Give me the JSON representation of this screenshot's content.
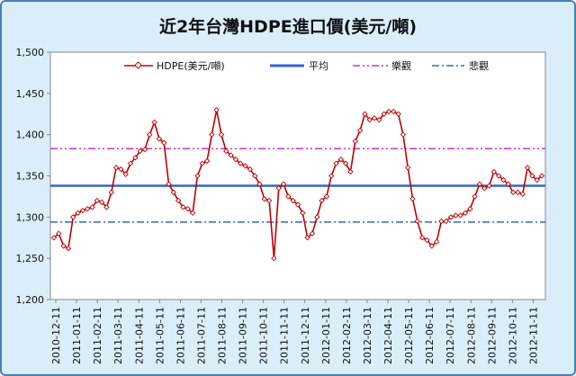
{
  "chart_data": {
    "type": "line",
    "title": "近2年台灣HDPE進口價(美元/噸)",
    "xlabel": "",
    "ylabel": "",
    "ylim": [
      1200,
      1500
    ],
    "yticks": [
      1200,
      1250,
      1300,
      1350,
      1400,
      1450,
      1500
    ],
    "ytick_labels": [
      "1,200",
      "1,250",
      "1,300",
      "1,350",
      "1,400",
      "1,450",
      "1,500"
    ],
    "x_tick_labels": [
      "2010-12-11",
      "2011-01-11",
      "2011-02-11",
      "2011-03-11",
      "2011-04-11",
      "2011-05-11",
      "2011-06-11",
      "2011-07-11",
      "2011-08-11",
      "2011-09-11",
      "2011-10-11",
      "2011-11-11",
      "2011-12-11",
      "2012-01-11",
      "2012-02-11",
      "2012-03-11",
      "2012-04-11",
      "2012-05-11",
      "2012-06-11",
      "2012-07-11",
      "2012-08-11",
      "2012-09-11",
      "2012-10-11",
      "2012-11-11"
    ],
    "grid": false,
    "legend_position": "top",
    "colors": {
      "series": "#c00000",
      "average": "#3366cc",
      "optimistic": "#cc33cc",
      "pessimistic": "#3366cc",
      "plot_bg": "#ffffff",
      "frame_bg": "#d9eef9",
      "frame_border": "#4a7ebb"
    },
    "series": [
      {
        "name": "HDPE(美元/噸)",
        "values": [
          1275,
          1280,
          1265,
          1262,
          1300,
          1305,
          1308,
          1310,
          1312,
          1320,
          1318,
          1312,
          1330,
          1360,
          1358,
          1352,
          1365,
          1372,
          1380,
          1382,
          1400,
          1415,
          1395,
          1390,
          1340,
          1330,
          1320,
          1312,
          1310,
          1305,
          1350,
          1365,
          1368,
          1400,
          1430,
          1400,
          1380,
          1375,
          1370,
          1365,
          1362,
          1358,
          1350,
          1340,
          1322,
          1320,
          1250,
          1335,
          1340,
          1325,
          1320,
          1315,
          1305,
          1275,
          1280,
          1300,
          1320,
          1325,
          1350,
          1365,
          1370,
          1365,
          1355,
          1392,
          1405,
          1425,
          1418,
          1420,
          1418,
          1425,
          1428,
          1428,
          1425,
          1400,
          1360,
          1322,
          1295,
          1275,
          1272,
          1265,
          1270,
          1295,
          1295,
          1300,
          1302,
          1302,
          1305,
          1310,
          1325,
          1340,
          1335,
          1338,
          1355,
          1350,
          1345,
          1340,
          1330,
          1330,
          1328,
          1360,
          1350,
          1345,
          1350
        ]
      }
    ],
    "reference_lines": [
      {
        "name": "平均",
        "value": 1338,
        "style": "solid"
      },
      {
        "name": "樂觀",
        "value": 1383,
        "style": "dash-dot-dot"
      },
      {
        "name": "悲觀",
        "value": 1294,
        "style": "dash-dot"
      }
    ]
  }
}
